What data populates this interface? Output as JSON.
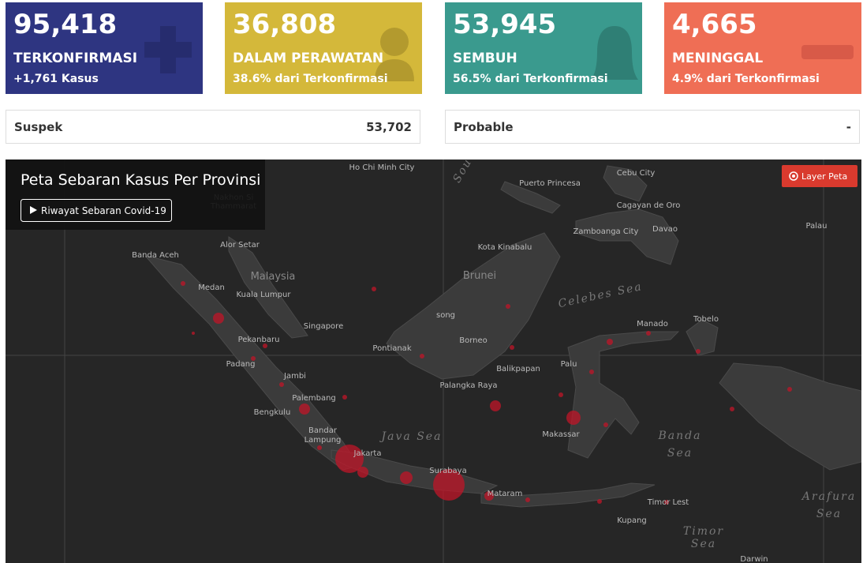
{
  "cards": [
    {
      "value": "95,418",
      "label": "TERKONFIRMASI",
      "sub": "+1,761 Kasus"
    },
    {
      "value": "36,808",
      "label": "DALAM PERAWATAN",
      "sub": "38.6% dari Terkonfirmasi"
    },
    {
      "value": "53,945",
      "label": "SEMBUH",
      "sub": "56.5% dari Terkonfirmasi"
    },
    {
      "value": "4,665",
      "label": "MENINGGAL",
      "sub": "4.9% dari Terkonfirmasi"
    }
  ],
  "summary": [
    {
      "label": "Suspek",
      "value": "53,702"
    },
    {
      "label": "Probable",
      "value": "-"
    }
  ],
  "map": {
    "title": "Peta Sebaran Kasus Per Provinsi",
    "button": "Riwayat Sebaran Covid-19",
    "layer_button": "Layer Peta",
    "labels": [
      "Ho Chi Minh City",
      "Puerto Princesa",
      "Cebu City",
      "Cagayan de Oro",
      "Zamboanga City",
      "Davao",
      "Palau",
      "Nakhon Si",
      "Thammarat",
      "Banda Aceh",
      "Alor Setar",
      "Malaysia",
      "Kuala Lumpur",
      "Medan",
      "Singapore",
      "Pekanbaru",
      "Padang",
      "Jambi",
      "Palembang",
      "Bengkulu",
      "Bandar",
      "Lampung",
      "Jakarta",
      "Java Sea",
      "Surabaya",
      "Mataram",
      "Kota Kinabalu",
      "Brunei",
      "Celebes Sea",
      "song",
      "Pontianak",
      "Borneo",
      "Manado",
      "Tobelo",
      "Balikpapan",
      "Palu",
      "Palangka Raya",
      "Makassar",
      "Banda",
      "Sea",
      "Timor Lest",
      "Kupang",
      "Timor",
      "Sea",
      "Arafura",
      "Sea",
      "Darwin",
      "Sou"
    ]
  }
}
